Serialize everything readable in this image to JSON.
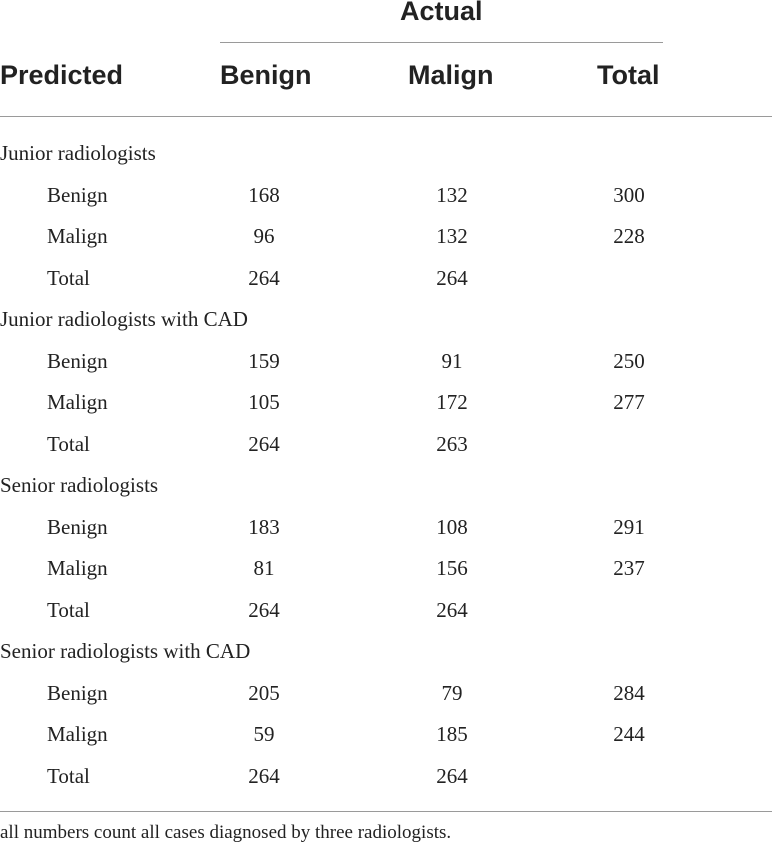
{
  "header": {
    "spanner": "Actual",
    "predicted": "Predicted",
    "benign": "Benign",
    "malign": "Malign",
    "total": "Total"
  },
  "groups": [
    {
      "title": "Junior radiologists",
      "rows": [
        {
          "label": "Benign",
          "benign": "168",
          "malign": "132",
          "total": "300"
        },
        {
          "label": "Malign",
          "benign": "96",
          "malign": "132",
          "total": "228"
        },
        {
          "label": "Total",
          "benign": "264",
          "malign": "264",
          "total": ""
        }
      ]
    },
    {
      "title": "Junior radiologists with CAD",
      "rows": [
        {
          "label": "Benign",
          "benign": "159",
          "malign": "91",
          "total": "250"
        },
        {
          "label": "Malign",
          "benign": "105",
          "malign": "172",
          "total": "277"
        },
        {
          "label": "Total",
          "benign": "264",
          "malign": "263",
          "total": ""
        }
      ]
    },
    {
      "title": "Senior radiologists",
      "rows": [
        {
          "label": "Benign",
          "benign": "183",
          "malign": "108",
          "total": "291"
        },
        {
          "label": "Malign",
          "benign": "81",
          "malign": "156",
          "total": "237"
        },
        {
          "label": "Total",
          "benign": "264",
          "malign": "264",
          "total": ""
        }
      ]
    },
    {
      "title": "Senior radiologists with CAD",
      "rows": [
        {
          "label": "Benign",
          "benign": "205",
          "malign": "79",
          "total": "284"
        },
        {
          "label": "Malign",
          "benign": "59",
          "malign": "185",
          "total": "244"
        },
        {
          "label": "Total",
          "benign": "264",
          "malign": "264",
          "total": ""
        }
      ]
    }
  ],
  "footnote": "all numbers count all cases diagnosed by three radiologists."
}
